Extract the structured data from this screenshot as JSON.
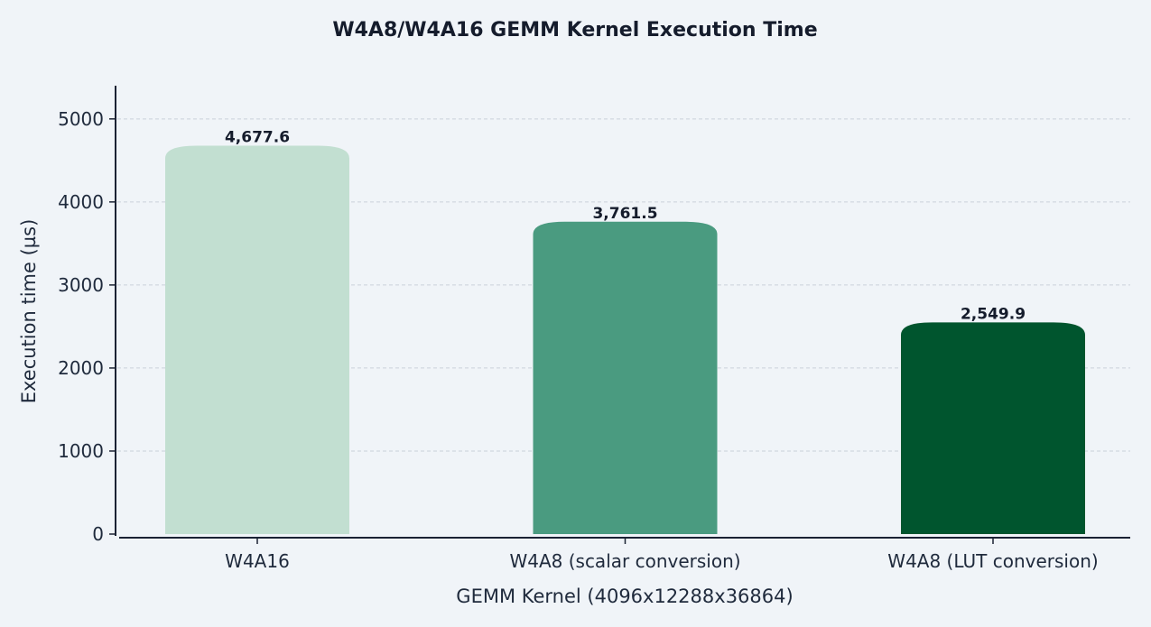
{
  "chart_data": {
    "type": "bar",
    "title": "W4A8/W4A16 GEMM Kernel Execution Time",
    "xlabel": "GEMM Kernel (4096x12288x36864)",
    "ylabel": "Execution time (µs)",
    "categories": [
      "W4A16",
      "W4A8 (scalar conversion)",
      "W4A8 (LUT conversion)"
    ],
    "values": [
      4677.6,
      3761.5,
      2549.9
    ],
    "value_labels": [
      "4,677.6",
      "3,761.5",
      "2,549.9"
    ],
    "colors": [
      "#c2dfd1",
      "#4a9b80",
      "#00552e"
    ],
    "ylim": [
      0,
      5400
    ],
    "yticks": [
      0,
      1000,
      2000,
      3000,
      4000,
      5000
    ],
    "grid": true
  }
}
